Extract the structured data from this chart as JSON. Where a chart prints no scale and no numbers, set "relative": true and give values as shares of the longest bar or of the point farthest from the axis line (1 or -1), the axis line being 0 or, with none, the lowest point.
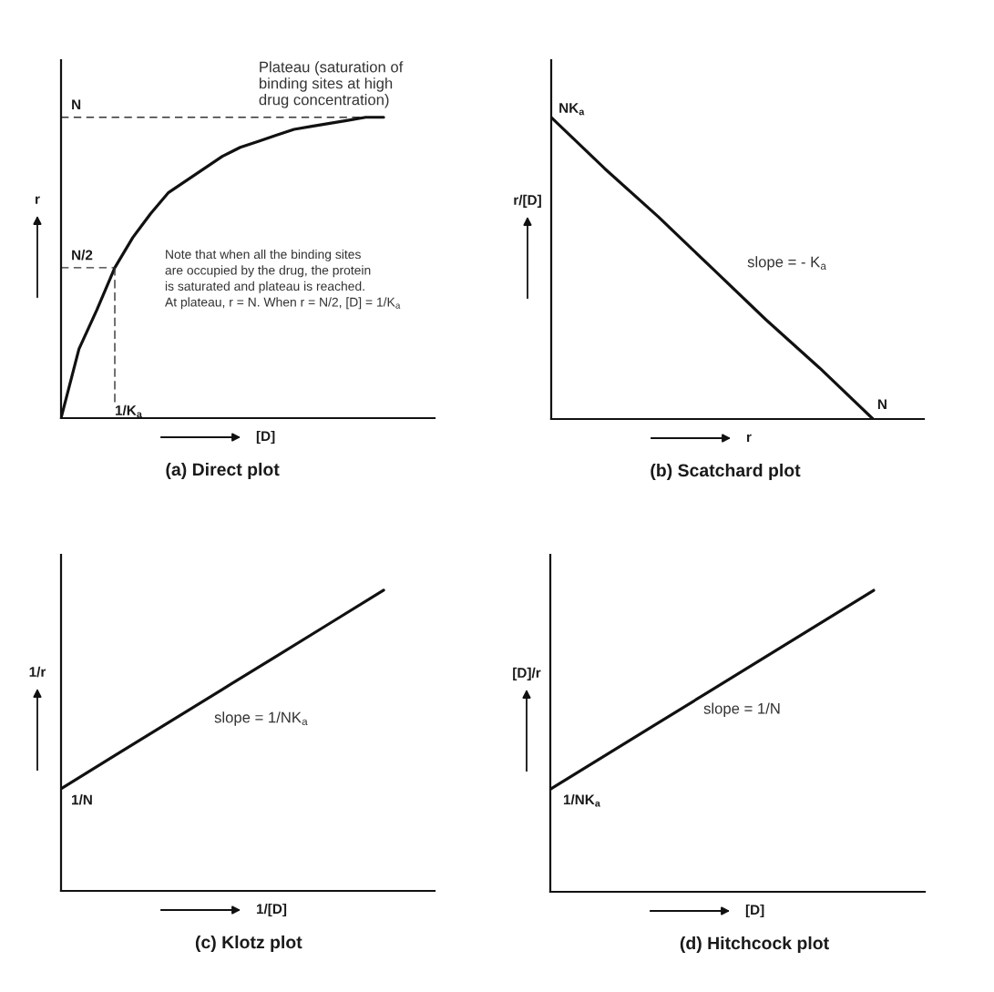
{
  "chart_data": [
    {
      "type": "line",
      "title": "(a) Direct plot",
      "xlabel": "[D]",
      "ylabel": "r",
      "relative": true,
      "line_style": "solid",
      "categories": [
        null,
        null,
        null,
        null,
        null,
        null,
        null,
        null,
        null,
        null,
        null,
        null,
        null,
        null,
        null,
        null,
        null,
        null,
        null
      ],
      "series": [
        {
          "color": "#111111",
          "values": [
            0,
            0.23,
            0.36,
            0.5,
            0.6,
            0.68,
            0.75,
            0.79,
            0.83,
            0.87,
            0.9,
            0.92,
            0.94,
            0.96,
            0.97,
            0.98,
            0.99,
            1.0,
            1.0
          ]
        }
      ],
      "ref_lines": [
        {
          "axis": "y",
          "value": 1.0,
          "label": "N",
          "line_style": "dashed",
          "color": "#333333"
        },
        {
          "axis": "y",
          "value": 0.5,
          "label": "N/2",
          "line_style": "dashed",
          "color": "#333333"
        }
      ],
      "annotations": [
        "1/K$_{a}$",
        "Plateau (saturation of\nbinding sites at high\ndrug concentration)",
        "Note that when all the binding sites\nare occupied by the drug, the protein\nis saturated and plateau is reached.\nAt plateau, r = N. When r = N/2, [D] = 1/K$_{a}$"
      ]
    },
    {
      "type": "line",
      "title": "(b) Scatchard plot",
      "xlabel": "r",
      "ylabel": "r/[D]",
      "relative": true,
      "line_style": "solid",
      "categories": [
        null,
        null,
        null,
        null,
        null,
        null,
        null
      ],
      "series": [
        {
          "color": "#111111",
          "values": [
            1.0,
            0.83,
            0.67,
            0.5,
            0.33,
            0.17,
            0
          ]
        }
      ],
      "annotations": [
        "NK$_{a}$",
        "N",
        "slope = - K$_{a}$"
      ]
    },
    {
      "type": "line",
      "title": "(c) Klotz plot",
      "xlabel": "1/[D]",
      "ylabel": "1/r",
      "relative": true,
      "line_style": "solid",
      "categories": [
        null,
        null,
        null,
        null,
        null,
        null,
        null
      ],
      "series": [
        {
          "color": "#111111",
          "values": [
            0.34,
            0.45,
            0.56,
            0.67,
            0.78,
            0.89,
            1.0
          ]
        }
      ],
      "annotations": [
        "1/N",
        "slope = 1/NK$_{a}$"
      ]
    },
    {
      "type": "line",
      "title": "(d) Hitchcock plot",
      "xlabel": "[D]",
      "ylabel": "[D]/r",
      "relative": true,
      "line_style": "solid",
      "categories": [
        null,
        null,
        null,
        null
      ],
      "series": [
        {
          "color": "#111111",
          "values": [
            0.34,
            0.56,
            0.78,
            1.0
          ]
        }
      ],
      "annotations": [
        "1/NK$_{a}$",
        "slope = 1/N"
      ]
    }
  ]
}
